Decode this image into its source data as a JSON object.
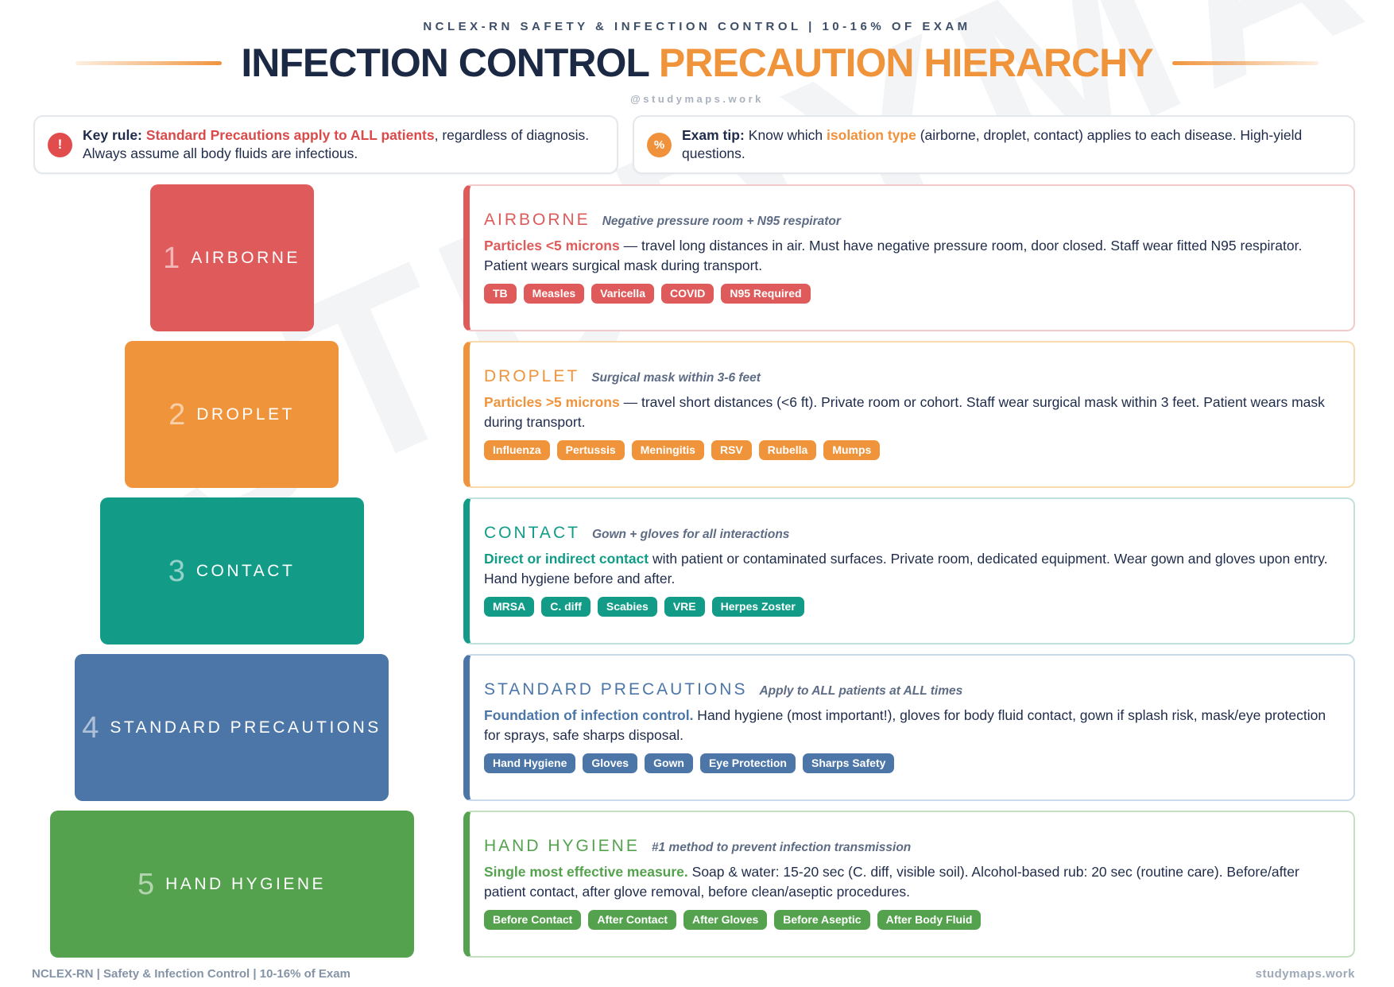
{
  "page": {
    "kicker": "NCLEX-RN SAFETY & INFECTION CONTROL | 10-16% OF EXAM",
    "title_primary": "INFECTION CONTROL ",
    "title_accent": "PRECAUTION HIERARCHY",
    "handle": "@studymaps.work",
    "watermark": "STUDYMAPS",
    "footer_left": "NCLEX-RN | Safety & Infection Control | 10-16% of Exam",
    "footer_right": "studymaps.work"
  },
  "colors": {
    "navy": "#1B2944",
    "title_accent_orange": "#F0943C",
    "airborne_red": "#DF5B5B",
    "droplet_orange": "#F0943C",
    "contact_teal": "#129C88",
    "standard_blue": "#4C76A8",
    "hygiene_green": "#55A24E"
  },
  "callouts": [
    {
      "icon": "!",
      "lead": "Key rule:",
      "pre": "",
      "highlight": "Standard Precautions apply to ALL patients",
      "rest": ", regardless of diagnosis. Always assume all body fluids are infectious.",
      "accent": "#E14D4D"
    },
    {
      "icon": "%",
      "lead": "Exam tip:",
      "pre": "Know which ",
      "highlight": "isolation type",
      "rest": " (airborne, droplet, contact) applies to each disease. High-yield questions.",
      "accent": "#F0913C"
    }
  ],
  "levels": [
    {
      "number": "1",
      "block_label": "AIRBORNE",
      "color": "#DF5B5B",
      "tint": "#F4C9C9",
      "card": {
        "title": "AIRBORNE",
        "subtitle": "Negative pressure room + N95 respirator",
        "lead": "Particles <5 microns",
        "body": " — travel long distances in air. Must have negative pressure room, door closed. Staff wear fitted N95 respirator. Patient wears surgical mask during transport.",
        "tags": [
          "TB",
          "Measles",
          "Varicella",
          "COVID",
          "N95 Required"
        ]
      }
    },
    {
      "number": "2",
      "block_label": "DROPLET",
      "color": "#F0943C",
      "tint": "#F8DAAE",
      "card": {
        "title": "DROPLET",
        "subtitle": "Surgical mask within 3-6 feet",
        "lead": "Particles >5 microns",
        "body": " — travel short distances (<6 ft). Private room or cohort. Staff wear surgical mask within 3 feet. Patient wears mask during transport.",
        "tags": [
          "Influenza",
          "Pertussis",
          "Meningitis",
          "RSV",
          "Rubella",
          "Mumps"
        ]
      }
    },
    {
      "number": "3",
      "block_label": "CONTACT",
      "color": "#129C88",
      "tint": "#BFE1DC",
      "card": {
        "title": "CONTACT",
        "subtitle": "Gown + gloves for all interactions",
        "lead": "Direct or indirect contact",
        "body": " with patient or contaminated surfaces. Private room, dedicated equipment. Wear gown and gloves upon entry. Hand hygiene before and after.",
        "tags": [
          "MRSA",
          "C. diff",
          "Scabies",
          "VRE",
          "Herpes Zoster"
        ]
      }
    },
    {
      "number": "4",
      "block_label": "STANDARD PRECAUTIONS",
      "color": "#4C76A8",
      "tint": "#CAD9EC",
      "card": {
        "title": "STANDARD PRECAUTIONS",
        "subtitle": "Apply to ALL patients at ALL times",
        "lead": "Foundation of infection control.",
        "body": " Hand hygiene (most important!), gloves for body fluid contact, gown if splash risk, mask/eye protection for sprays, safe sharps disposal.",
        "tags": [
          "Hand Hygiene",
          "Gloves",
          "Gown",
          "Eye Protection",
          "Sharps Safety"
        ]
      }
    },
    {
      "number": "5",
      "block_label": "HAND HYGIENE",
      "color": "#55A24E",
      "tint": "#C5E0C0",
      "card": {
        "title": "HAND HYGIENE",
        "subtitle": "#1 method to prevent infection transmission",
        "lead": "Single most effective measure.",
        "body": " Soap & water: 15-20 sec (C. diff, visible soil). Alcohol-based rub: 20 sec (routine care). Before/after patient contact, after glove removal, before clean/aseptic procedures.",
        "tags": [
          "Before Contact",
          "After Contact",
          "After Gloves",
          "Before Aseptic",
          "After Body Fluid"
        ]
      }
    }
  ]
}
